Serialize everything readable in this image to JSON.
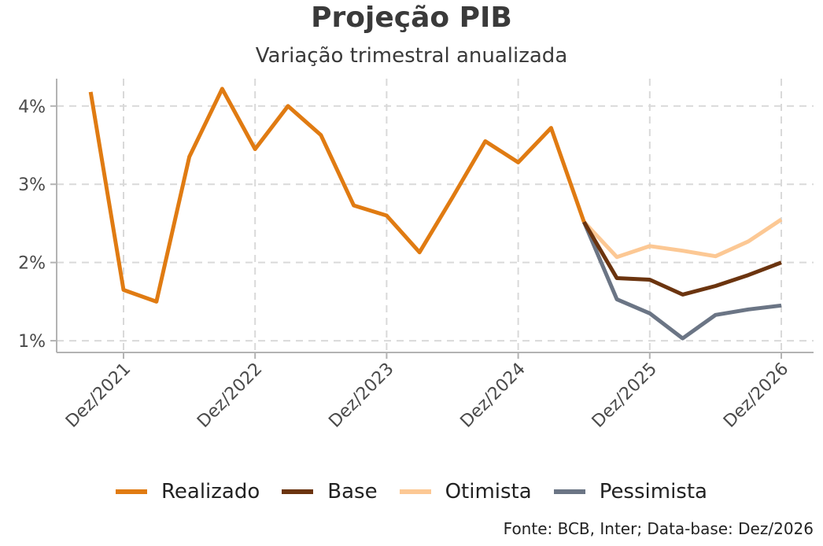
{
  "chart_data": {
    "type": "line",
    "title": "Projeção PIB",
    "subtitle": "Variação trimestral anualizada",
    "xlabel": "",
    "ylabel": "",
    "x_ticks": [
      "Dez/2021",
      "Dez/2022",
      "Dez/2023",
      "Dez/2024",
      "Dez/2025",
      "Dez/2026"
    ],
    "y_ticks": [
      "1%",
      "2%",
      "3%",
      "4%"
    ],
    "ylim": [
      0.85,
      4.35
    ],
    "grid": true,
    "legend_position": "bottom",
    "series": [
      {
        "name": "Realizado",
        "color": "#e07b12",
        "width": 5,
        "points": [
          [
            "Set/2021",
            4.18
          ],
          [
            "Dez/2021",
            1.65
          ],
          [
            "Mar/2022",
            1.5
          ],
          [
            "Jun/2022",
            3.35
          ],
          [
            "Set/2022",
            4.22
          ],
          [
            "Dez/2022",
            3.45
          ],
          [
            "Mar/2023",
            4.0
          ],
          [
            "Jun/2023",
            3.63
          ],
          [
            "Set/2023",
            2.73
          ],
          [
            "Dez/2023",
            2.6
          ],
          [
            "Mar/2024",
            2.13
          ],
          [
            "Jun/2024",
            2.83
          ],
          [
            "Set/2024",
            3.55
          ],
          [
            "Dez/2024",
            3.28
          ],
          [
            "Mar/2025",
            3.72
          ],
          [
            "Jun/2025",
            2.52
          ]
        ]
      },
      {
        "name": "Base",
        "color": "#6b340f",
        "width": 5,
        "points": [
          [
            "Jun/2025",
            2.52
          ],
          [
            "Set/2025",
            1.8
          ],
          [
            "Dez/2025",
            1.78
          ],
          [
            "Mar/2026",
            1.59
          ],
          [
            "Jun/2026",
            1.7
          ],
          [
            "Set/2026",
            1.84
          ],
          [
            "Dez/2026",
            2.0
          ]
        ]
      },
      {
        "name": "Otimista",
        "color": "#fcc894",
        "width": 5,
        "points": [
          [
            "Jun/2025",
            2.52
          ],
          [
            "Set/2025",
            2.07
          ],
          [
            "Dez/2025",
            2.21
          ],
          [
            "Mar/2026",
            2.15
          ],
          [
            "Jun/2026",
            2.08
          ],
          [
            "Set/2026",
            2.27
          ],
          [
            "Dez/2026",
            2.55
          ]
        ]
      },
      {
        "name": "Pessimista",
        "color": "#6b7585",
        "width": 5,
        "points": [
          [
            "Jun/2025",
            2.52
          ],
          [
            "Set/2025",
            1.53
          ],
          [
            "Dez/2025",
            1.35
          ],
          [
            "Mar/2026",
            1.03
          ],
          [
            "Jun/2026",
            1.33
          ],
          [
            "Set/2026",
            1.4
          ],
          [
            "Dez/2026",
            1.45
          ]
        ]
      }
    ],
    "source": "Fonte: BCB, Inter; Data-base: Dez/2026"
  }
}
